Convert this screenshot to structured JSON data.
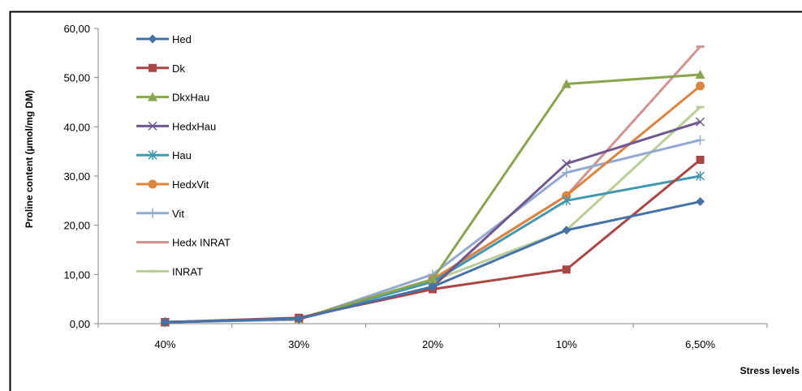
{
  "chart_data": {
    "type": "line",
    "title": "",
    "xlabel": "Stress levels",
    "ylabel": "Proline content (µmol/mg DM)",
    "categories": [
      "40%",
      "30%",
      "20%",
      "10%",
      "6,50%"
    ],
    "ylim": [
      0,
      60
    ],
    "yticks": [
      "0,00",
      "10,00",
      "20,00",
      "30,00",
      "40,00",
      "50,00",
      "60,00"
    ],
    "grid": false,
    "legend_position": "top-left",
    "series": [
      {
        "name": "Hed",
        "color": "#4572A7",
        "marker": "diamond",
        "values": [
          0.3,
          1.0,
          7.5,
          19.0,
          24.8
        ]
      },
      {
        "name": "Dk",
        "color": "#AA4643",
        "marker": "square",
        "values": [
          0.3,
          1.2,
          7.0,
          11.0,
          33.3
        ]
      },
      {
        "name": "DkxHau",
        "color": "#89A54E",
        "marker": "triangle",
        "values": [
          0.3,
          1.0,
          9.0,
          48.7,
          50.6
        ]
      },
      {
        "name": "HedxHau",
        "color": "#71588F",
        "marker": "x",
        "values": [
          0.3,
          1.0,
          7.5,
          32.5,
          41.0
        ]
      },
      {
        "name": "Hau",
        "color": "#4198AF",
        "marker": "star",
        "values": [
          0.3,
          1.0,
          8.5,
          25.0,
          30.0
        ]
      },
      {
        "name": "HedxVit",
        "color": "#DB843D",
        "marker": "circle",
        "values": [
          0.3,
          1.0,
          9.0,
          26.0,
          48.3
        ]
      },
      {
        "name": "Vit",
        "color": "#93A9CF",
        "marker": "plus",
        "values": [
          0.3,
          0.8,
          10.0,
          30.7,
          37.3
        ]
      },
      {
        "name": "Hedx INRAT",
        "color": "#D19392",
        "marker": "dash",
        "values": [
          0.3,
          1.0,
          9.0,
          26.0,
          56.3
        ]
      },
      {
        "name": "INRAT",
        "color": "#B9CD96",
        "marker": "dash",
        "values": [
          0.3,
          1.0,
          8.7,
          19.0,
          44.0
        ]
      }
    ]
  }
}
